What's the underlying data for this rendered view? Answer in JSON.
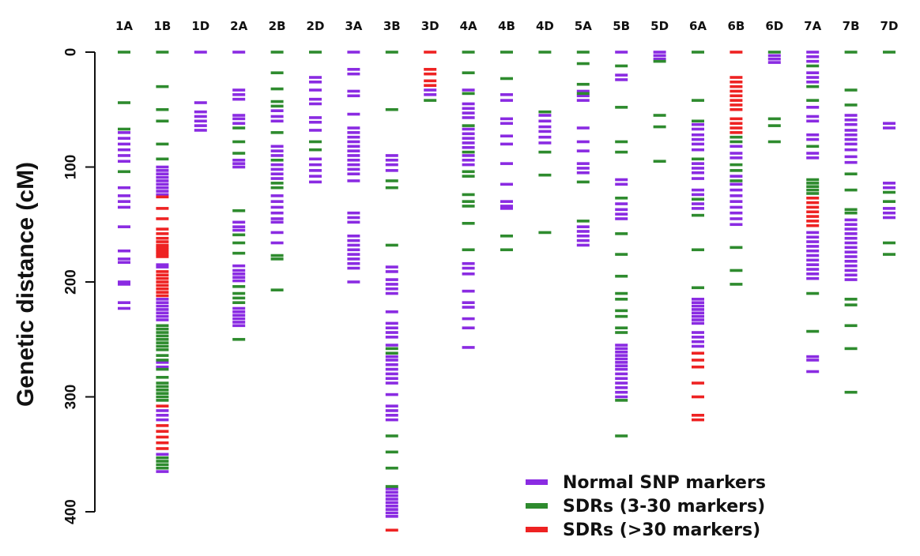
{
  "chart_data": {
    "type": "marker-map",
    "ylabel": "Genetic distance (cM)",
    "ylim": [
      0,
      418
    ],
    "yticks": [
      0,
      100,
      200,
      300,
      400
    ],
    "legend_position": "bottom-right",
    "categories": [
      "Normal SNP markers",
      "SDRs (3-30 markers)",
      "SDRs (>30 markers)"
    ],
    "colors": {
      "Normal SNP markers": "#8a2be2",
      "SDRs (3-30 markers)": "#2e8b2e",
      "SDRs (>30 markers)": "#ee2222"
    },
    "chromosomes": [
      {
        "name": "1A",
        "markers": {
          "normal": [
            70,
            75,
            80,
            85,
            90,
            95,
            118,
            125,
            130,
            135,
            152,
            173,
            180,
            183,
            200,
            202,
            218,
            223
          ],
          "sdr_small": [
            0,
            44,
            67,
            104
          ],
          "sdr_large": []
        }
      },
      {
        "name": "1B",
        "markers": {
          "normal": [
            100,
            103,
            106,
            109,
            112,
            115,
            118,
            121,
            124,
            185,
            187,
            215,
            218,
            221,
            224,
            227,
            230,
            233,
            270,
            274,
            312,
            316,
            320,
            350,
            365
          ],
          "sdr_small": [
            0,
            30,
            50,
            60,
            80,
            93,
            238,
            241,
            244,
            247,
            250,
            253,
            256,
            259,
            264,
            268,
            276,
            283,
            288,
            291,
            294,
            297,
            300,
            303,
            353,
            356,
            359,
            362
          ],
          "sdr_large": [
            126,
            136,
            145,
            154,
            158,
            162,
            165,
            168,
            170,
            172,
            174,
            176,
            178,
            191,
            194,
            197,
            200,
            203,
            206,
            209,
            212,
            308,
            325,
            330,
            335,
            340,
            345
          ]
        }
      },
      {
        "name": "1D",
        "markers": {
          "normal": [
            0,
            44,
            52,
            56,
            60,
            64,
            68
          ],
          "sdr_small": [],
          "sdr_large": []
        }
      },
      {
        "name": "2A",
        "markers": {
          "normal": [
            0,
            33,
            37,
            41,
            55,
            58,
            62,
            94,
            97,
            100,
            148,
            152,
            155,
            186,
            190,
            193,
            196,
            199,
            223,
            226,
            229,
            232,
            235,
            238
          ],
          "sdr_small": [
            66,
            78,
            88,
            138,
            159,
            166,
            175,
            204,
            210,
            214,
            218,
            250
          ],
          "sdr_large": []
        }
      },
      {
        "name": "2B",
        "markers": {
          "normal": [
            51,
            56,
            60,
            82,
            86,
            90,
            98,
            102,
            106,
            110,
            125,
            130,
            135,
            140,
            145,
            148,
            157,
            166
          ],
          "sdr_small": [
            0,
            18,
            32,
            43,
            47,
            70,
            94,
            114,
            118,
            177,
            180,
            207
          ],
          "sdr_large": []
        }
      },
      {
        "name": "2D",
        "markers": {
          "normal": [
            22,
            26,
            33,
            41,
            45,
            57,
            61,
            68,
            93,
            98,
            103,
            108,
            113
          ],
          "sdr_small": [
            0,
            78,
            85
          ],
          "sdr_large": []
        }
      },
      {
        "name": "3A",
        "markers": {
          "normal": [
            0,
            15,
            19,
            34,
            38,
            54,
            66,
            70,
            74,
            78,
            82,
            86,
            90,
            94,
            98,
            102,
            106,
            112,
            140,
            144,
            148,
            160,
            164,
            168,
            172,
            176,
            180,
            184,
            188,
            200
          ],
          "sdr_small": [],
          "sdr_large": []
        }
      },
      {
        "name": "3B",
        "markers": {
          "normal": [
            90,
            94,
            98,
            103,
            187,
            191,
            198,
            202,
            206,
            210,
            226,
            236,
            240,
            244,
            248,
            255,
            265,
            268,
            272,
            276,
            280,
            284,
            288,
            298,
            308,
            312,
            316,
            320,
            380,
            383,
            386,
            389,
            392,
            395,
            398,
            401,
            404
          ],
          "sdr_small": [
            0,
            50,
            112,
            118,
            168,
            258,
            262,
            334,
            348,
            362,
            378
          ],
          "sdr_large": [
            416
          ]
        }
      },
      {
        "name": "3D",
        "markers": {
          "normal": [
            33,
            37
          ],
          "sdr_small": [
            42
          ],
          "sdr_large": [
            0,
            15,
            19,
            25,
            29
          ]
        }
      },
      {
        "name": "4A",
        "markers": {
          "normal": [
            33,
            45,
            49,
            53,
            57,
            67,
            71,
            75,
            79,
            83,
            90,
            94,
            98,
            184,
            188,
            193,
            208,
            218,
            222,
            232,
            240,
            257
          ],
          "sdr_small": [
            0,
            18,
            36,
            64,
            87,
            104,
            108,
            124,
            130,
            134,
            149,
            172
          ],
          "sdr_large": []
        }
      },
      {
        "name": "4B",
        "markers": {
          "normal": [
            37,
            42,
            58,
            62,
            73,
            80,
            97,
            115,
            130,
            134,
            136
          ],
          "sdr_small": [
            0,
            23,
            160,
            172
          ],
          "sdr_large": []
        }
      },
      {
        "name": "4D",
        "markers": {
          "normal": [
            55,
            60,
            65,
            69,
            74,
            79
          ],
          "sdr_small": [
            0,
            52,
            87,
            107,
            157
          ],
          "sdr_large": []
        }
      },
      {
        "name": "5A",
        "markers": {
          "normal": [
            34,
            38,
            42,
            66,
            78,
            86,
            97,
            101,
            105,
            152,
            156,
            160,
            164,
            168
          ],
          "sdr_small": [
            0,
            10,
            28,
            36,
            113,
            147
          ],
          "sdr_large": []
        }
      },
      {
        "name": "5B",
        "markers": {
          "normal": [
            0,
            20,
            24,
            111,
            115,
            132,
            137,
            141,
            145,
            255,
            258,
            261,
            264,
            267,
            270,
            273,
            276,
            280,
            284,
            288,
            292,
            296,
            300
          ],
          "sdr_small": [
            12,
            48,
            78,
            87,
            127,
            158,
            176,
            195,
            210,
            215,
            225,
            230,
            240,
            244,
            303,
            334
          ],
          "sdr_large": []
        }
      },
      {
        "name": "5D",
        "markers": {
          "normal": [
            0,
            3,
            6
          ],
          "sdr_small": [
            8,
            55,
            65,
            95
          ],
          "sdr_large": []
        }
      },
      {
        "name": "6A",
        "markers": {
          "normal": [
            63,
            67,
            72,
            76,
            80,
            85,
            97,
            101,
            105,
            110,
            120,
            124,
            132,
            136,
            215,
            218,
            221,
            224,
            227,
            230,
            233,
            236,
            244,
            248,
            252,
            256
          ],
          "sdr_small": [
            0,
            42,
            60,
            93,
            128,
            142,
            172,
            205
          ],
          "sdr_large": [
            262,
            268,
            274,
            288,
            300,
            316,
            320
          ]
        }
      },
      {
        "name": "6B",
        "markers": {
          "normal": [
            82,
            88,
            92,
            108,
            115,
            120,
            125,
            130,
            135,
            140,
            145,
            150
          ],
          "sdr_small": [
            74,
            78,
            98,
            103,
            112,
            170,
            190,
            202
          ],
          "sdr_large": [
            0,
            22,
            26,
            30,
            34,
            38,
            42,
            46,
            50,
            58,
            62,
            66,
            70
          ]
        }
      },
      {
        "name": "6D",
        "markers": {
          "normal": [
            3,
            6,
            9
          ],
          "sdr_small": [
            0,
            58,
            64,
            78
          ],
          "sdr_large": []
        }
      },
      {
        "name": "7A",
        "markers": {
          "normal": [
            0,
            4,
            8,
            18,
            22,
            26,
            48,
            56,
            60,
            72,
            76,
            88,
            92,
            157,
            161,
            165,
            169,
            173,
            177,
            181,
            185,
            189,
            193,
            197,
            265,
            268,
            278
          ],
          "sdr_small": [
            12,
            30,
            42,
            82,
            111,
            114,
            117,
            120,
            123,
            210,
            243
          ],
          "sdr_large": [
            127,
            131,
            135,
            139,
            143,
            147,
            151
          ]
        }
      },
      {
        "name": "7B",
        "markers": {
          "normal": [
            55,
            59,
            63,
            68,
            72,
            76,
            80,
            85,
            91,
            96,
            146,
            150,
            154,
            158,
            162,
            166,
            170,
            174,
            178,
            182,
            186,
            190,
            194,
            198
          ],
          "sdr_small": [
            0,
            33,
            46,
            106,
            120,
            137,
            140,
            215,
            220,
            238,
            258,
            296
          ],
          "sdr_large": []
        }
      },
      {
        "name": "7D",
        "markers": {
          "normal": [
            62,
            66,
            114,
            118,
            136,
            140,
            144
          ],
          "sdr_small": [
            0,
            122,
            130,
            166,
            176
          ],
          "sdr_large": []
        }
      }
    ]
  }
}
